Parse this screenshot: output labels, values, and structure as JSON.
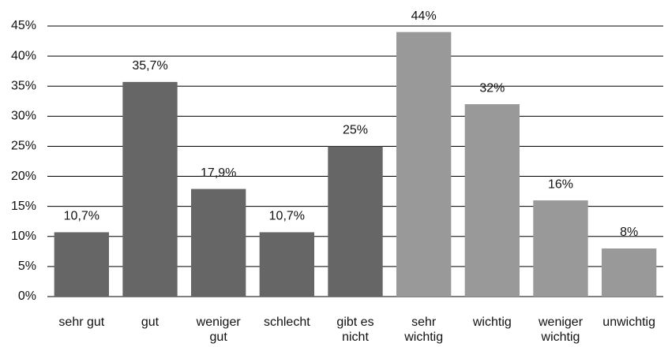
{
  "chart_data": {
    "type": "bar",
    "categories": [
      "sehr gut",
      "gut",
      "weniger\ngut",
      "schlecht",
      "gibt es\nnicht",
      "sehr\nwichtig",
      "wichtig",
      "weniger\nwichtig",
      "unwichtig"
    ],
    "values": [
      10.7,
      35.7,
      17.9,
      10.7,
      25,
      44,
      32,
      16,
      8
    ],
    "value_labels": [
      "10,7%",
      "35,7%",
      "17,9%",
      "10,7%",
      "25%",
      "44%",
      "32%",
      "16%",
      "8%"
    ],
    "colors": [
      "#666666",
      "#666666",
      "#666666",
      "#666666",
      "#666666",
      "#999999",
      "#999999",
      "#999999",
      "#999999"
    ],
    "ylim": [
      0,
      45
    ],
    "yticks": [
      {
        "value": 0,
        "label": "0%"
      },
      {
        "value": 5,
        "label": "5%"
      },
      {
        "value": 10,
        "label": "10%"
      },
      {
        "value": 15,
        "label": "15%"
      },
      {
        "value": 20,
        "label": "20%"
      },
      {
        "value": 25,
        "label": "25%"
      },
      {
        "value": 30,
        "label": "30%"
      },
      {
        "value": 35,
        "label": "35%"
      },
      {
        "value": 40,
        "label": "40%"
      },
      {
        "value": 45,
        "label": "45%"
      }
    ],
    "grid": true
  }
}
